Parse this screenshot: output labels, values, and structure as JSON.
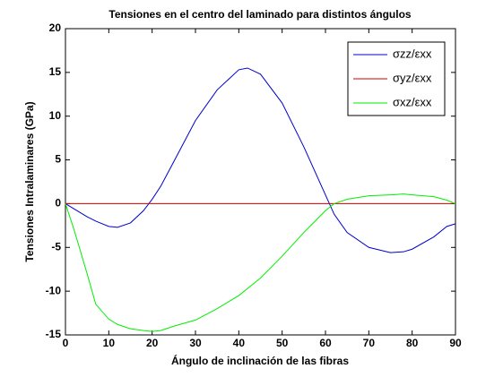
{
  "chart_data": {
    "type": "line",
    "title": "Tensiones en el centro del laminado para distintos ángulos",
    "xlabel": "Ángulo de inclinación de las fibras",
    "ylabel": "Tensiones Intralaminares (GPa)",
    "x": [
      0,
      2,
      5,
      7,
      10,
      12,
      15,
      18,
      20,
      22,
      25,
      30,
      35,
      40,
      42,
      45,
      50,
      55,
      60,
      62,
      65,
      70,
      75,
      78,
      80,
      85,
      88,
      90
    ],
    "series": [
      {
        "name": "σzz/εxx",
        "color": "#0000cc",
        "values": [
          0,
          -0.6,
          -1.5,
          -2.0,
          -2.6,
          -2.7,
          -2.2,
          -0.8,
          0.5,
          2,
          4.8,
          9.5,
          13,
          15.3,
          15.5,
          14.8,
          11.5,
          6.5,
          1,
          -1.2,
          -3.3,
          -5,
          -5.6,
          -5.5,
          -5.2,
          -3.8,
          -2.6,
          -2.3
        ]
      },
      {
        "name": "σyz/εxx",
        "color": "#cc0000",
        "values": [
          0,
          0,
          0,
          0,
          0,
          0,
          0,
          0,
          0,
          0,
          0,
          0,
          0,
          0,
          0,
          0,
          0,
          0,
          0,
          0,
          0,
          0,
          0,
          0,
          0,
          0,
          0,
          0
        ]
      },
      {
        "name": "σxz/εxx",
        "color": "#00ee00",
        "values": [
          0,
          -3,
          -8,
          -11.5,
          -13.2,
          -13.8,
          -14.3,
          -14.5,
          -14.6,
          -14.5,
          -14,
          -13.3,
          -12,
          -10.5,
          -9.7,
          -8.5,
          -6,
          -3.3,
          -0.8,
          0,
          0.5,
          0.9,
          1,
          1.1,
          1,
          0.8,
          0.4,
          0
        ]
      }
    ],
    "xlim": [
      0,
      90
    ],
    "xticks": [
      0,
      10,
      20,
      30,
      40,
      50,
      60,
      70,
      80,
      90
    ],
    "ylim": [
      -15,
      20
    ],
    "yticks": [
      -15,
      -10,
      -5,
      0,
      5,
      10,
      15,
      20
    ],
    "legend": "upper-right"
  }
}
